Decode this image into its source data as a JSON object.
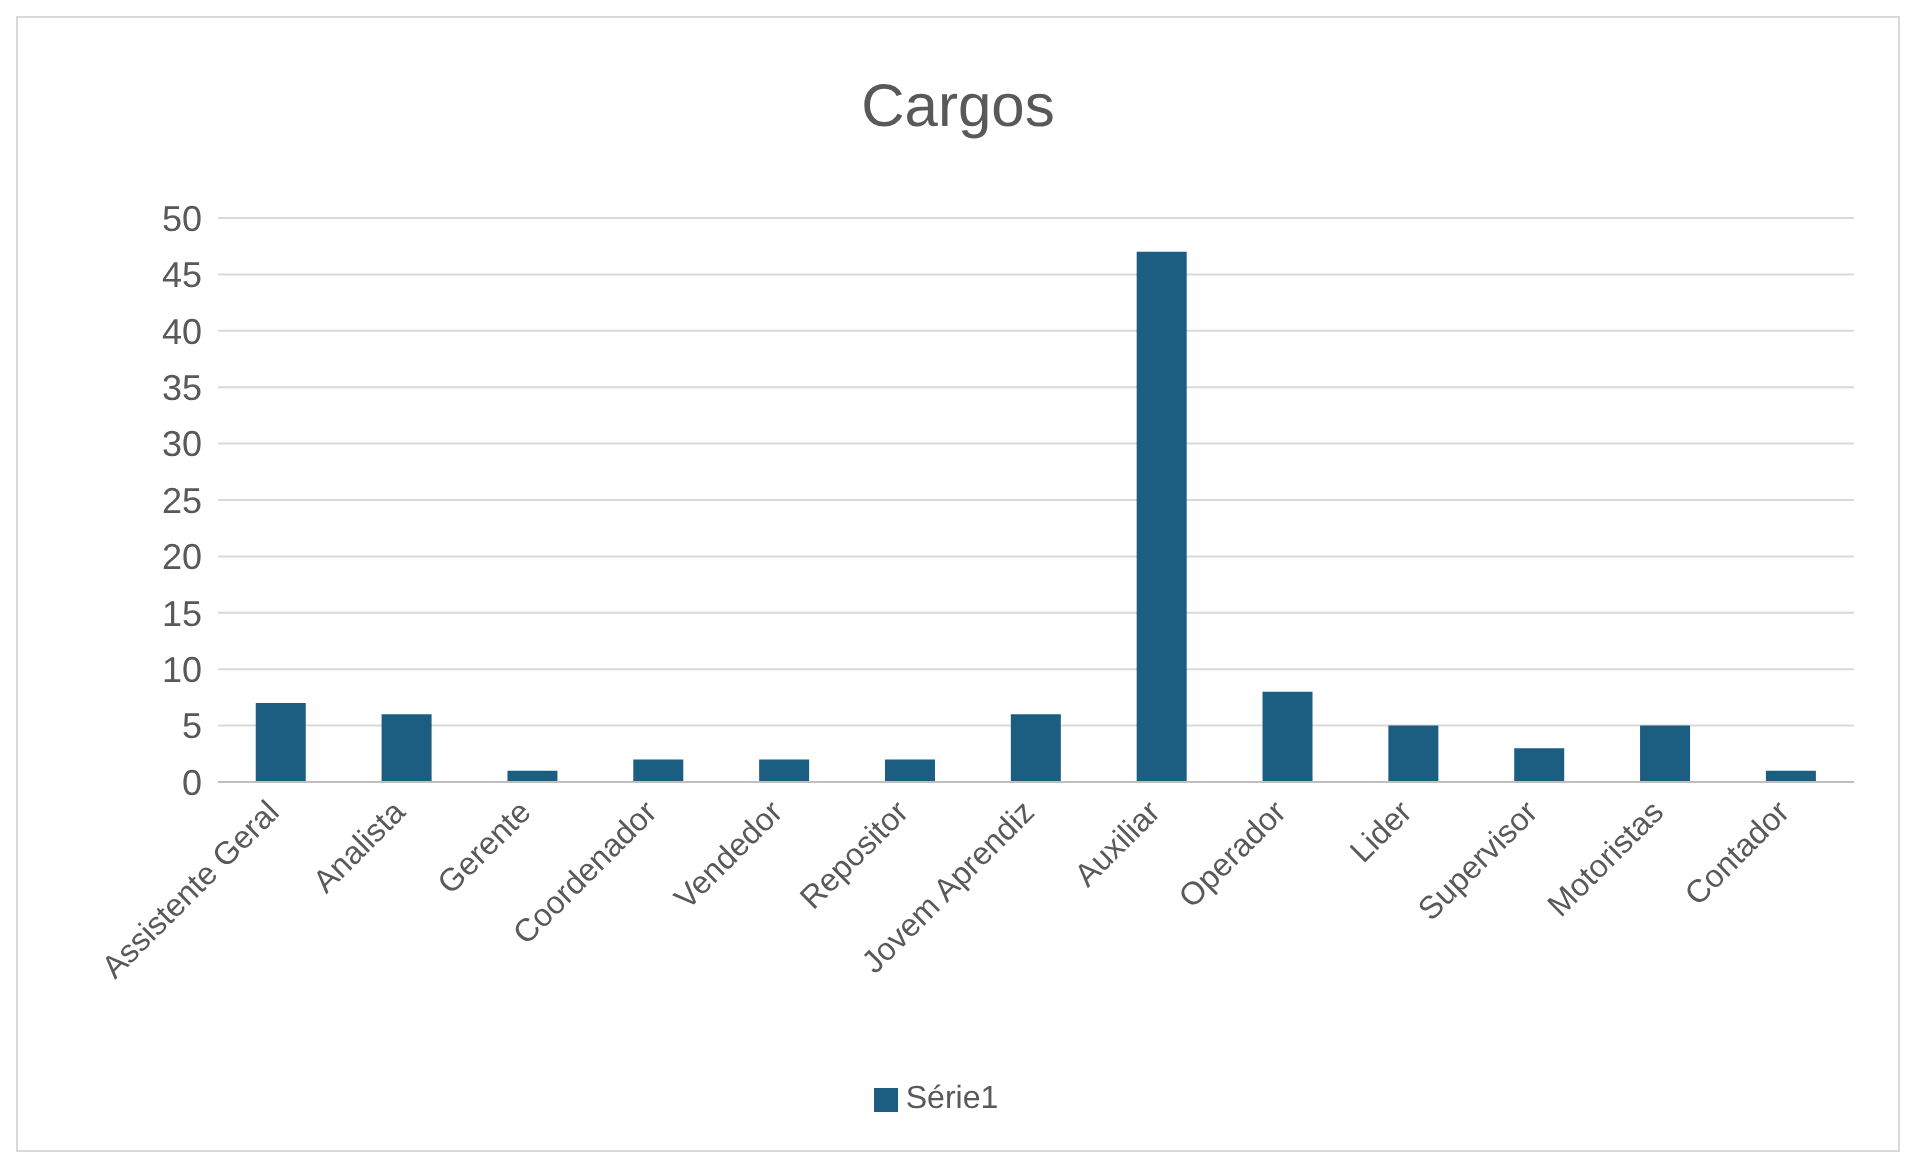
{
  "chart_data": {
    "type": "bar",
    "title": "Cargos",
    "categories": [
      "Assistente Geral",
      "Analista",
      "Gerente",
      "Coordenador",
      "Vendedor",
      "Repositor",
      "Jovem Aprendiz",
      "Auxiliar",
      "Operador",
      "Lider",
      "Supervisor",
      "Motoristas",
      "Contador"
    ],
    "series": [
      {
        "name": "Série1",
        "color": "#1b5e82",
        "values": [
          7,
          6,
          1,
          2,
          2,
          2,
          6,
          47,
          8,
          5,
          3,
          5,
          1
        ]
      }
    ],
    "ylim": [
      0,
      50
    ],
    "yticks": [
      0,
      5,
      10,
      15,
      20,
      25,
      30,
      35,
      40,
      45,
      50
    ],
    "grid": "y",
    "legend": "bottom"
  }
}
